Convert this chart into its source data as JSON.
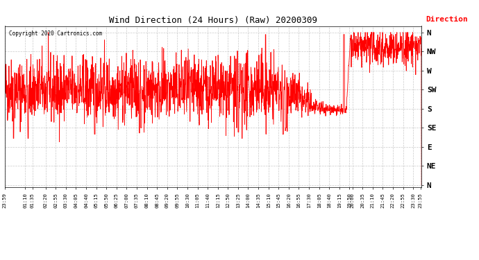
{
  "title": "Wind Direction (24 Hours) (Raw) 20200309",
  "copyright": "Copyright 2020 Cartronics.com",
  "legend_label": "Direction",
  "legend_color": "red",
  "line_color": "red",
  "plot_bg_color": "#ffffff",
  "grid_color": "#bbbbbb",
  "ytick_labels": [
    "N",
    "NW",
    "W",
    "SW",
    "S",
    "SE",
    "E",
    "NE",
    "N"
  ],
  "ytick_values": [
    360,
    315,
    270,
    225,
    180,
    135,
    90,
    45,
    0
  ],
  "ymin": 0,
  "ymax": 360,
  "seed": 42
}
